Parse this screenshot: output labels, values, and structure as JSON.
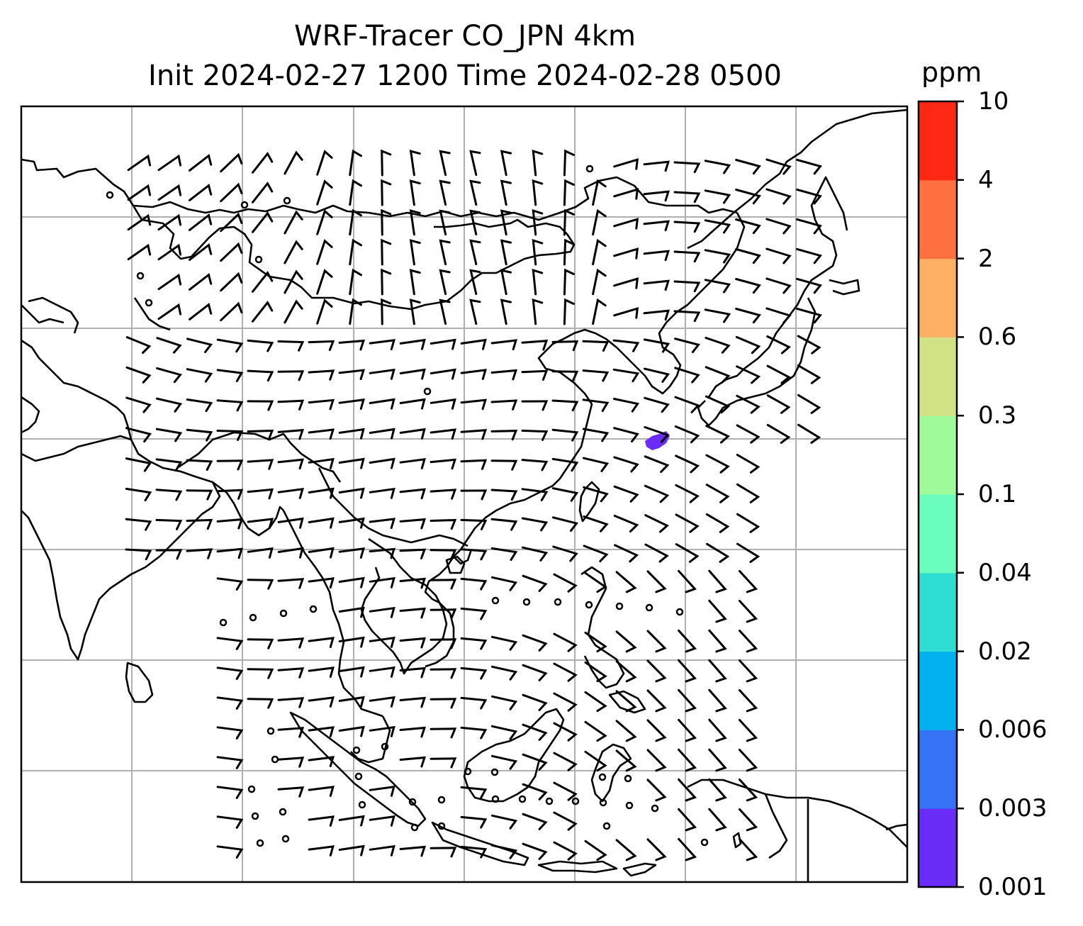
{
  "title": {
    "line1": "WRF-Tracer CO_JPN 4km",
    "line2": "Init 2024-02-27 1200 Time 2024-02-28 0500"
  },
  "colorbar": {
    "unit": "ppm",
    "levels": [
      "0.001",
      "0.003",
      "0.006",
      "0.02",
      "0.04",
      "0.1",
      "0.3",
      "0.6",
      "2",
      "4",
      "10"
    ],
    "colors": [
      "#6a2cf7",
      "#3672f4",
      "#02b1ee",
      "#2fddd3",
      "#6bfdbe",
      "#9ffa9a",
      "#d1e285",
      "#feb065",
      "#fe703f",
      "#fe2815"
    ]
  },
  "map": {
    "region": "East and Southeast Asia",
    "features": [
      "coastlines",
      "country borders",
      "lat-lon gridlines",
      "wind barbs",
      "CO tracer concentration"
    ],
    "concentration_patch": {
      "level": "0.001-0.003",
      "color": "#6a2cf7"
    }
  }
}
